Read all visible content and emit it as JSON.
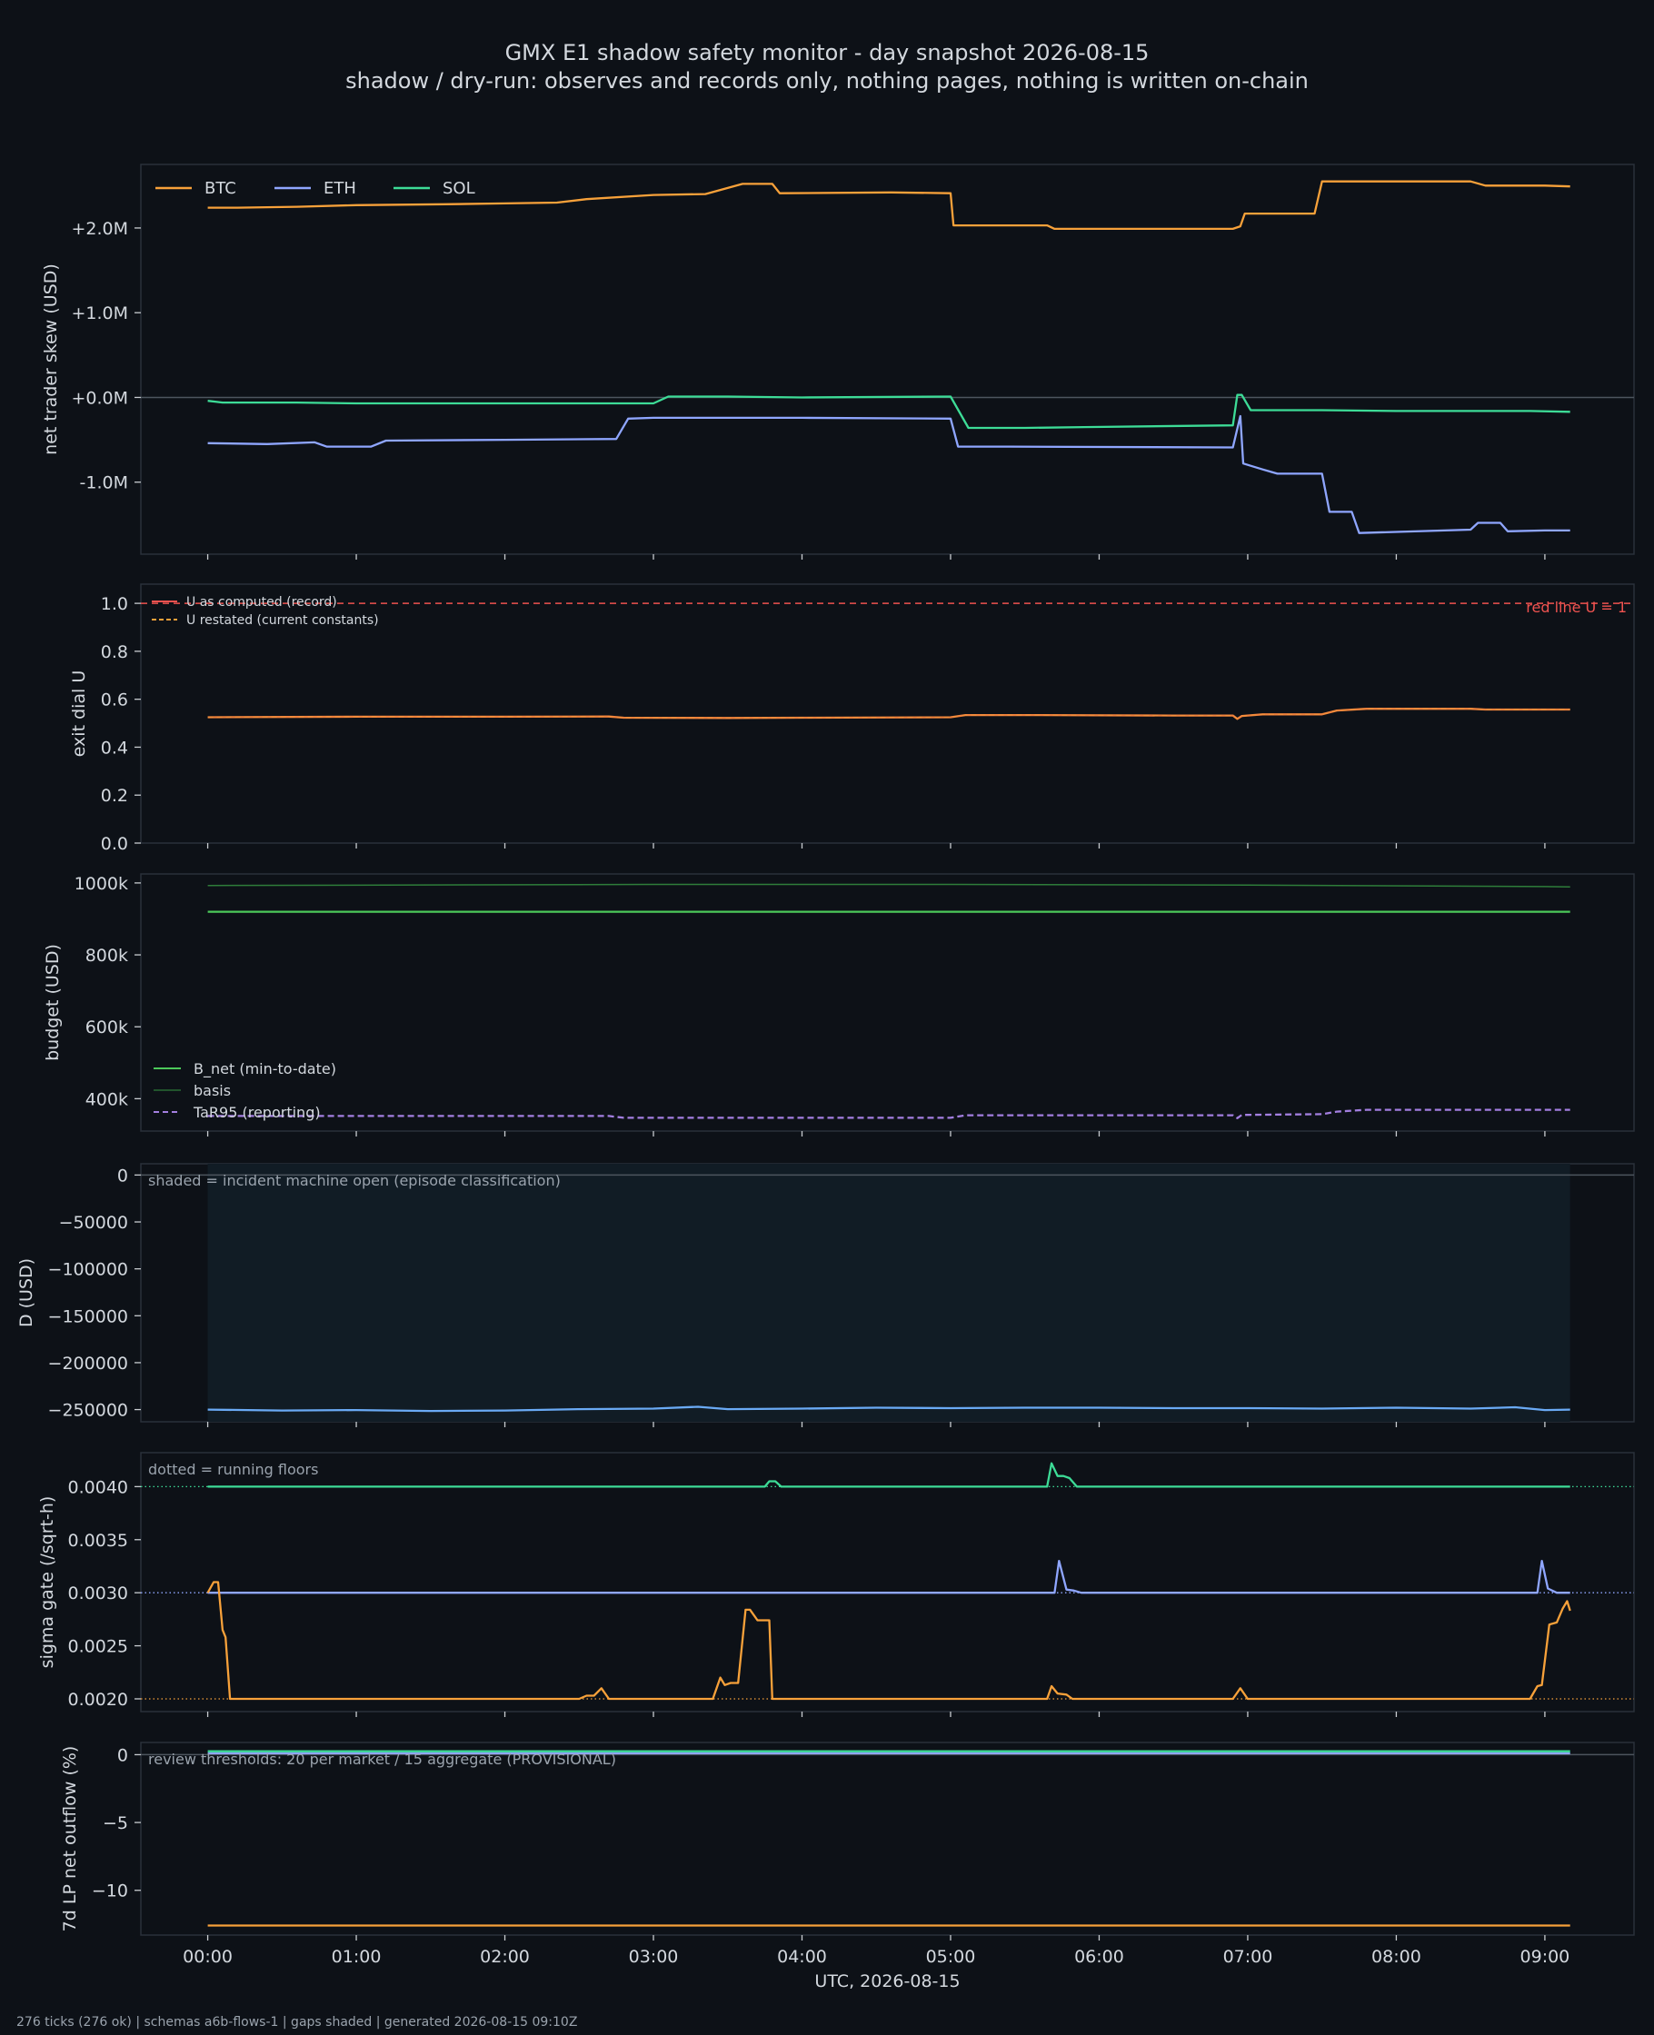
{
  "title": "GMX E1 shadow safety monitor - day snapshot 2026-08-15",
  "subtitle": "shadow / dry-run: observes and records only, nothing pages, nothing is written on-chain",
  "footer": "276 ticks (276 ok) | schemas a6b-flows-1 | gaps shaded | generated 2026-08-15 09:10Z",
  "colors": {
    "background": "#0d1117",
    "text": "#d3d8de",
    "btc": "#f7a13a",
    "eth": "#8fa6ff",
    "sol": "#3ddc97",
    "u_line": "#f0813c",
    "red_line": "#ef5350",
    "b_net": "#4cc95a",
    "basis": "#2e7d3a",
    "tar95": "#a37fe0",
    "d_line": "#6aaaf5",
    "shade": "#111c25"
  },
  "chart_data": [
    {
      "id": "skew",
      "type": "line",
      "ylabel": "net trader skew (USD)",
      "ylim": [
        -1.85,
        2.75
      ],
      "yticks": [
        -1,
        0,
        1,
        2
      ],
      "ytick_labels": [
        "-1.0M",
        "+0.0M",
        "+1.0M",
        "+2.0M"
      ],
      "zero_line": true,
      "legend": {
        "placement": "top-left",
        "entries": [
          "BTC",
          "ETH",
          "SOL"
        ]
      },
      "series": [
        {
          "name": "BTC",
          "color_key": "btc",
          "x": [
            0,
            0.2,
            0.6,
            1.0,
            1.6,
            2.0,
            2.35,
            2.55,
            3.0,
            3.35,
            3.6,
            3.8,
            3.85,
            4.6,
            5.0,
            5.02,
            5.1,
            5.65,
            5.7,
            6.4,
            6.9,
            6.95,
            6.98,
            7.1,
            7.45,
            7.5,
            8.0,
            8.5,
            8.6,
            9.0,
            9.17
          ],
          "y": [
            2.24,
            2.24,
            2.25,
            2.27,
            2.28,
            2.29,
            2.3,
            2.34,
            2.39,
            2.4,
            2.52,
            2.52,
            2.41,
            2.42,
            2.41,
            2.03,
            2.03,
            2.03,
            1.99,
            1.99,
            1.99,
            2.02,
            2.17,
            2.17,
            2.17,
            2.55,
            2.55,
            2.55,
            2.5,
            2.5,
            2.49
          ]
        },
        {
          "name": "ETH",
          "color_key": "eth",
          "x": [
            0,
            0.4,
            0.72,
            0.8,
            1.1,
            1.2,
            2.0,
            2.75,
            2.83,
            3.0,
            4.0,
            5.0,
            5.05,
            5.4,
            6.9,
            6.95,
            6.97,
            7.1,
            7.2,
            7.5,
            7.55,
            7.7,
            7.75,
            8.5,
            8.55,
            8.7,
            8.75,
            9.0,
            9.17
          ],
          "y": [
            -0.54,
            -0.55,
            -0.53,
            -0.58,
            -0.58,
            -0.51,
            -0.5,
            -0.49,
            -0.25,
            -0.24,
            -0.24,
            -0.25,
            -0.58,
            -0.58,
            -0.59,
            -0.22,
            -0.78,
            -0.85,
            -0.9,
            -0.9,
            -1.35,
            -1.35,
            -1.6,
            -1.56,
            -1.48,
            -1.48,
            -1.58,
            -1.57,
            -1.57
          ]
        },
        {
          "name": "SOL",
          "color_key": "sol",
          "x": [
            0,
            0.05,
            0.1,
            0.6,
            1.0,
            2.0,
            3.0,
            3.1,
            3.5,
            4.0,
            5.0,
            5.12,
            5.5,
            5.9,
            6.9,
            6.93,
            6.96,
            7.02,
            7.5,
            8.0,
            8.9,
            9.17
          ],
          "y": [
            -0.04,
            -0.05,
            -0.06,
            -0.06,
            -0.07,
            -0.07,
            -0.07,
            0.01,
            0.01,
            0.0,
            0.01,
            -0.36,
            -0.36,
            -0.35,
            -0.33,
            0.03,
            0.03,
            -0.15,
            -0.15,
            -0.16,
            -0.16,
            -0.17
          ]
        }
      ]
    },
    {
      "id": "exit_dial",
      "type": "line",
      "ylabel": "exit dial U",
      "ylim": [
        0,
        1.08
      ],
      "yticks": [
        0.0,
        0.2,
        0.4,
        0.6,
        0.8,
        1.0
      ],
      "ytick_labels": [
        "0.0",
        "0.2",
        "0.4",
        "0.6",
        "0.8",
        "1.0"
      ],
      "legend": {
        "placement": "top-left",
        "entries": [
          "U as computed (record)",
          "U restated (current constants)"
        ]
      },
      "annotation": "red line U = 1",
      "reference_line": {
        "value": 1.0,
        "color_key": "red_line",
        "style": "dashed"
      },
      "series": [
        {
          "name": "U as computed (record)",
          "color_key": "u_line",
          "x": [
            0,
            1,
            2,
            2.7,
            2.8,
            3.5,
            4.0,
            5.0,
            5.1,
            5.5,
            6.5,
            6.9,
            6.93,
            6.96,
            7.1,
            7.5,
            7.6,
            7.8,
            8.5,
            8.6,
            9.17
          ],
          "y": [
            0.525,
            0.527,
            0.527,
            0.528,
            0.523,
            0.522,
            0.523,
            0.525,
            0.534,
            0.534,
            0.532,
            0.532,
            0.518,
            0.53,
            0.537,
            0.537,
            0.553,
            0.56,
            0.56,
            0.557,
            0.557
          ]
        },
        {
          "name": "U restated (current constants)",
          "color_key": "btc",
          "x": [
            0,
            1,
            2,
            2.7,
            2.8,
            3.5,
            4.0,
            5.0,
            5.1,
            5.5,
            6.5,
            6.9,
            6.93,
            6.96,
            7.1,
            7.5,
            7.6,
            7.8,
            8.5,
            8.6,
            9.17
          ],
          "y": [
            0.525,
            0.527,
            0.527,
            0.528,
            0.523,
            0.522,
            0.523,
            0.525,
            0.534,
            0.534,
            0.532,
            0.532,
            0.518,
            0.53,
            0.537,
            0.537,
            0.553,
            0.56,
            0.56,
            0.557,
            0.557
          ]
        }
      ]
    },
    {
      "id": "budget",
      "type": "line",
      "ylabel": "budget (USD)",
      "ylim": [
        310000,
        1025000
      ],
      "yticks": [
        400000,
        600000,
        800000,
        1000000
      ],
      "ytick_labels": [
        "400k",
        "600k",
        "800k",
        "1000k"
      ],
      "legend": {
        "placement": "lower-left",
        "entries": [
          "B_net (min-to-date)",
          "basis",
          "TaR95 (reporting)"
        ]
      },
      "series": [
        {
          "name": "B_net (min-to-date)",
          "color_key": "b_net",
          "x": [
            0,
            9.17
          ],
          "y": [
            920000,
            920000
          ]
        },
        {
          "name": "basis",
          "color_key": "basis",
          "x": [
            0,
            3,
            5,
            7,
            9,
            9.17
          ],
          "y": [
            993000,
            996000,
            996000,
            994000,
            990000,
            989000
          ]
        },
        {
          "name": "TaR95 (reporting)",
          "color_key": "tar95",
          "x": [
            0,
            2.7,
            2.8,
            5.0,
            5.1,
            6.9,
            6.93,
            6.96,
            7.5,
            7.6,
            7.8,
            9.17
          ],
          "y": [
            352000,
            352000,
            347000,
            347000,
            354000,
            354000,
            346000,
            355000,
            357000,
            364000,
            369000,
            369000
          ]
        }
      ]
    },
    {
      "id": "drawdown",
      "type": "line",
      "ylabel": "D (USD)",
      "ylim": [
        -263000,
        12000
      ],
      "yticks": [
        -250000,
        -200000,
        -150000,
        -100000,
        -50000,
        0
      ],
      "ytick_labels": [
        "−250000",
        "−200000",
        "−150000",
        "−100000",
        "−50000",
        "0"
      ],
      "zero_line": true,
      "annotation": "shaded = incident machine open (episode classification)",
      "shaded_x": [
        0,
        9.17
      ],
      "series": [
        {
          "name": "D",
          "color_key": "d_line",
          "x": [
            0,
            0.5,
            1.0,
            1.5,
            2.0,
            2.5,
            3.0,
            3.3,
            3.5,
            4.0,
            4.5,
            5.0,
            5.5,
            6.0,
            6.5,
            7.0,
            7.5,
            8.0,
            8.5,
            8.8,
            9.0,
            9.17
          ],
          "y": [
            -250000,
            -251000,
            -250500,
            -251500,
            -251000,
            -249500,
            -249000,
            -247000,
            -249500,
            -249000,
            -248000,
            -248500,
            -248000,
            -248000,
            -248500,
            -248500,
            -249000,
            -248000,
            -249000,
            -247500,
            -250500,
            -250000
          ]
        }
      ]
    },
    {
      "id": "sigma_gate",
      "type": "line",
      "ylabel": "sigma gate (/sqrt-h)",
      "ylim": [
        0.00188,
        0.00432
      ],
      "yticks": [
        0.002,
        0.0025,
        0.003,
        0.0035,
        0.004
      ],
      "ytick_labels": [
        "0.0020",
        "0.0025",
        "0.0030",
        "0.0035",
        "0.0040"
      ],
      "annotation": "dotted = running floors",
      "floors": [
        {
          "value": 0.004,
          "color_key": "sol"
        },
        {
          "value": 0.003,
          "color_key": "eth"
        },
        {
          "value": 0.002,
          "color_key": "btc"
        }
      ],
      "series": [
        {
          "name": "SOL",
          "color_key": "sol",
          "x": [
            0,
            3.75,
            3.78,
            3.82,
            3.86,
            5.65,
            5.68,
            5.72,
            5.76,
            5.8,
            5.85,
            9.17
          ],
          "y": [
            0.004,
            0.004,
            0.00405,
            0.00405,
            0.004,
            0.004,
            0.00422,
            0.0041,
            0.0041,
            0.00408,
            0.004,
            0.004
          ]
        },
        {
          "name": "ETH",
          "color_key": "eth",
          "x": [
            0,
            5.7,
            5.73,
            5.78,
            5.83,
            5.88,
            8.95,
            8.98,
            9.02,
            9.08,
            9.17
          ],
          "y": [
            0.003,
            0.003,
            0.0033,
            0.00303,
            0.00302,
            0.003,
            0.003,
            0.0033,
            0.00304,
            0.003,
            0.003
          ]
        },
        {
          "name": "BTC",
          "color_key": "btc",
          "x": [
            0,
            0.04,
            0.07,
            0.1,
            0.12,
            0.15,
            0.17,
            0.2,
            2.5,
            2.55,
            2.6,
            2.65,
            2.7,
            3.4,
            3.45,
            3.48,
            3.52,
            3.57,
            3.62,
            3.65,
            3.7,
            3.75,
            3.78,
            3.8,
            3.83,
            3.86,
            5.65,
            5.68,
            5.72,
            5.78,
            5.82,
            6.9,
            6.95,
            7.0,
            7.05,
            8.9,
            8.95,
            8.98,
            9.03,
            9.08,
            9.12,
            9.15,
            9.17
          ],
          "y": [
            0.003,
            0.0031,
            0.0031,
            0.00265,
            0.00258,
            0.002,
            0.002,
            0.002,
            0.002,
            0.00203,
            0.00203,
            0.0021,
            0.002,
            0.002,
            0.0022,
            0.00213,
            0.00215,
            0.00215,
            0.00284,
            0.00284,
            0.00274,
            0.00274,
            0.00274,
            0.002,
            0.002,
            0.002,
            0.002,
            0.00212,
            0.00205,
            0.00204,
            0.002,
            0.002,
            0.0021,
            0.002,
            0.002,
            0.002,
            0.00212,
            0.00213,
            0.0027,
            0.00272,
            0.00285,
            0.00292,
            0.00283
          ]
        }
      ]
    },
    {
      "id": "lp_outflow",
      "type": "line",
      "ylabel": "7d LP net outflow (%)",
      "xlabel": "UTC, 2026-08-15",
      "ylim": [
        -13.3,
        0.9
      ],
      "yticks": [
        -10,
        -5,
        0
      ],
      "ytick_labels": [
        "−10",
        "−5",
        "0"
      ],
      "zero_line": true,
      "annotation": "review thresholds: 20 per market / 15 aggregate (PROVISIONAL)",
      "series": [
        {
          "name": "BTC",
          "color_key": "btc",
          "x": [
            0,
            9.17
          ],
          "y": [
            -12.6,
            -12.6
          ]
        },
        {
          "name": "ETH",
          "color_key": "eth",
          "x": [
            0,
            9.17
          ],
          "y": [
            0.1,
            0.1
          ]
        },
        {
          "name": "SOL",
          "color_key": "sol",
          "x": [
            0,
            9.17
          ],
          "y": [
            0.25,
            0.25
          ]
        }
      ]
    }
  ],
  "x_axis": {
    "xlim": [
      -0.45,
      9.6
    ],
    "ticks": [
      0,
      1,
      2,
      3,
      4,
      5,
      6,
      7,
      8,
      9
    ],
    "tick_labels": [
      "00:00",
      "01:00",
      "02:00",
      "03:00",
      "04:00",
      "05:00",
      "06:00",
      "07:00",
      "08:00",
      "09:00"
    ],
    "xlabel": "UTC, 2026-08-15"
  }
}
